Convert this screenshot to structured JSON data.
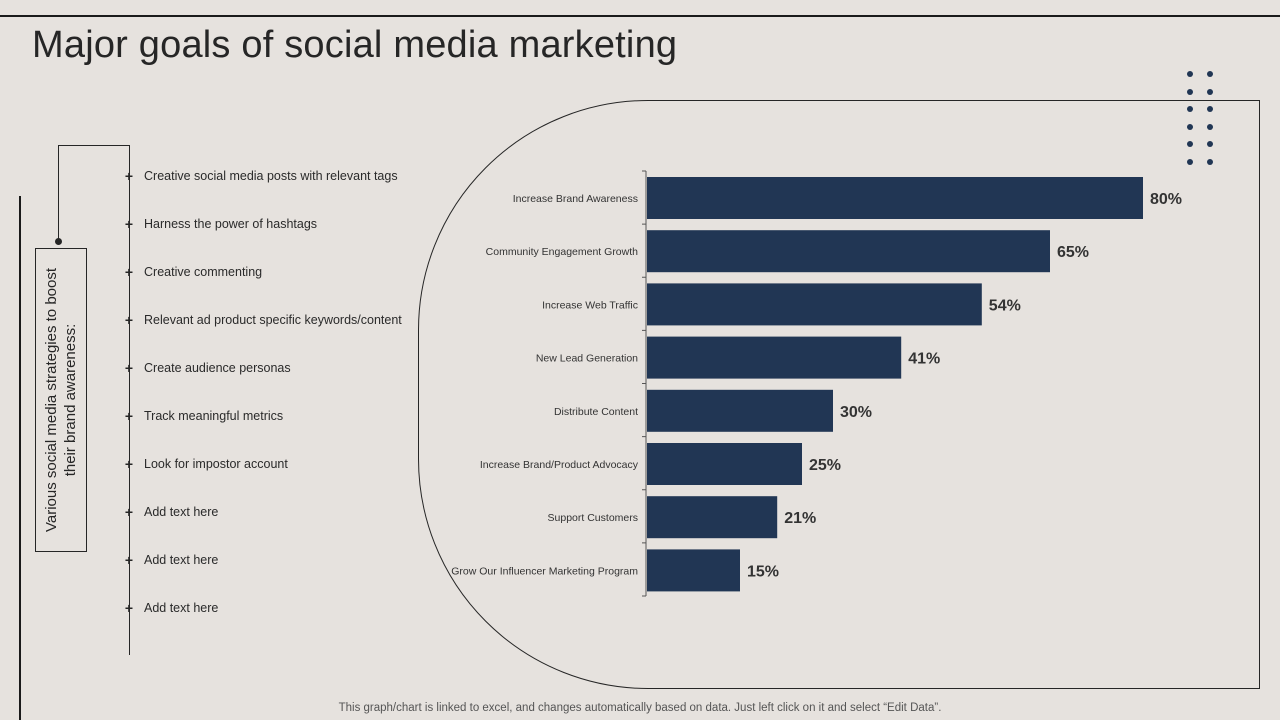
{
  "title": "Major goals of social media marketing",
  "strategy_label": "Various social media strategies to boost their brand awareness:",
  "strategies": [
    "Creative social media posts with relevant tags",
    "Harness the power of hashtags",
    "Creative commenting",
    "Relevant ad product specific keywords/content",
    "Create audience personas",
    "Track meaningful metrics",
    "Look for impostor account",
    "Add text here",
    "Add text here",
    "Add text here"
  ],
  "colors": {
    "bar": "#213654",
    "background": "#e6e2de",
    "text": "#262626"
  },
  "chart_data": {
    "type": "bar",
    "orientation": "horizontal",
    "title": "",
    "xlabel": "",
    "ylabel": "",
    "categories": [
      "Increase Brand Awareness",
      "Community Engagement Growth",
      "Increase Web Traffic",
      "New Lead Generation",
      "Distribute Content",
      "Increase Brand/Product Advocacy",
      "Support Customers",
      "Grow Our Influencer Marketing Program"
    ],
    "values": [
      80,
      65,
      54,
      41,
      30,
      25,
      21,
      15
    ],
    "value_labels": [
      "80%",
      "65%",
      "54%",
      "41%",
      "30%",
      "25%",
      "21%",
      "15%"
    ],
    "xlim": [
      0,
      100
    ],
    "grid": false,
    "legend": "none"
  },
  "footnote": "This graph/chart is linked to excel, and changes automatically based on data. Just left click on it and select “Edit Data”."
}
